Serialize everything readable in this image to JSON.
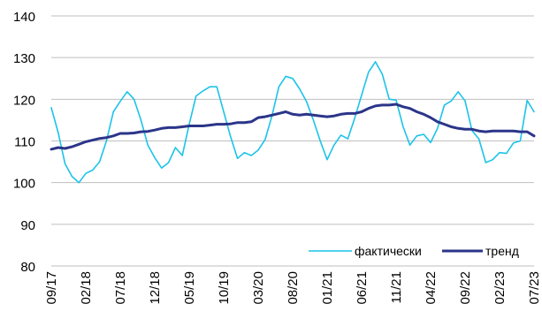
{
  "chart_data": {
    "type": "line",
    "title": "",
    "xlabel": "",
    "ylabel": "",
    "ylim": [
      80,
      140
    ],
    "yticks": [
      80,
      90,
      100,
      110,
      120,
      130,
      140
    ],
    "grid": true,
    "legend_position": "bottom-right",
    "x_tick_labels": [
      "09/17",
      "02/18",
      "07/18",
      "12/18",
      "05/19",
      "10/19",
      "03/20",
      "08/20",
      "01/21",
      "06/21",
      "11/21",
      "04/22",
      "09/22",
      "02/23",
      "07/23"
    ],
    "series": [
      {
        "name": "фактически",
        "color": "#1cc3e8",
        "values": [
          118,
          112,
          104.5,
          101.5,
          100,
          102.2,
          103,
          105,
          110,
          117,
          119.5,
          121.8,
          120,
          115,
          109,
          106,
          103.5,
          104.8,
          108.4,
          106.5,
          114,
          120.8,
          122,
          123,
          123,
          117,
          111,
          105.8,
          107.2,
          106.5,
          107.8,
          110.3,
          116,
          123,
          125.5,
          125,
          122.5,
          119.5,
          115,
          110,
          105.5,
          109,
          111.4,
          110.5,
          115.5,
          121,
          126.5,
          129,
          126,
          120,
          119.8,
          113.5,
          109,
          111.2,
          111.6,
          109.6,
          113,
          118.6,
          119.6,
          121.8,
          119.6,
          112.5,
          110.5,
          104.8,
          105.5,
          107.2,
          107,
          109.5,
          110,
          119.7,
          117
        ]
      },
      {
        "name": "тренд",
        "color": "#2b3589",
        "values": [
          108,
          108.4,
          108.2,
          108.6,
          109.2,
          109.8,
          110.2,
          110.6,
          110.8,
          111.2,
          111.8,
          111.8,
          111.9,
          112.2,
          112.3,
          112.6,
          113,
          113.2,
          113.2,
          113.4,
          113.6,
          113.6,
          113.6,
          113.8,
          114,
          114,
          114.1,
          114.4,
          114.4,
          114.6,
          115.6,
          115.8,
          116.2,
          116.6,
          117,
          116.4,
          116.2,
          116.4,
          116.2,
          116,
          115.8,
          116,
          116.4,
          116.6,
          116.6,
          117,
          117.8,
          118.4,
          118.6,
          118.6,
          118.8,
          118.2,
          117.8,
          117,
          116.4,
          115.6,
          114.6,
          114,
          113.4,
          113,
          112.8,
          112.8,
          112.4,
          112.2,
          112.4,
          112.4,
          112.4,
          112.4,
          112.2,
          112.2,
          111.2
        ]
      }
    ]
  }
}
